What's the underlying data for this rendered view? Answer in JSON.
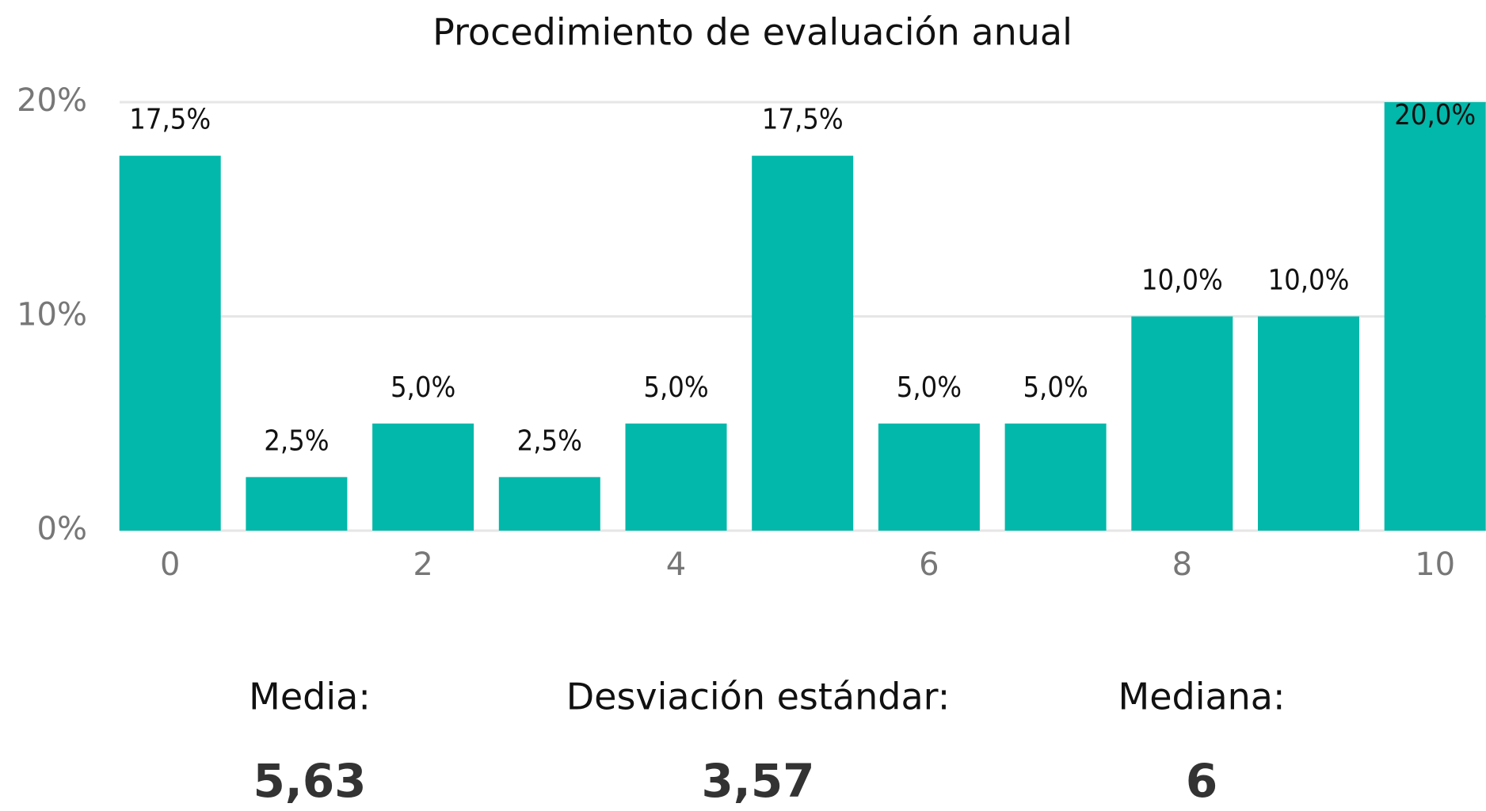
{
  "chart_data": {
    "type": "bar",
    "title": "Procedimiento de evaluación anual",
    "categories": [
      "0",
      null,
      "2",
      null,
      "4",
      null,
      "6",
      null,
      "8",
      null,
      "10"
    ],
    "values": [
      17.5,
      2.5,
      5,
      2.5,
      5,
      17.5,
      5,
      5,
      10,
      10,
      20
    ],
    "value_labels": [
      "17,5%",
      "2,5%",
      "5,0%",
      "2,5%",
      "5,0%",
      "17,5%",
      "5,0%",
      "5,0%",
      "10,0%",
      "10,0%",
      "20,0%"
    ],
    "color": "#01b8aa",
    "ylim": [
      0,
      20
    ],
    "yticks": [
      {
        "value": 0,
        "label": "0%"
      },
      {
        "value": 10,
        "label": "10%"
      },
      {
        "value": 20,
        "label": "20%"
      }
    ],
    "grid": true
  },
  "summary": [
    {
      "label": "Media:",
      "value": "5,63"
    },
    {
      "label": "Desviación estándar:",
      "value": "3,57"
    },
    {
      "label": "Mediana:",
      "value": "6"
    }
  ]
}
